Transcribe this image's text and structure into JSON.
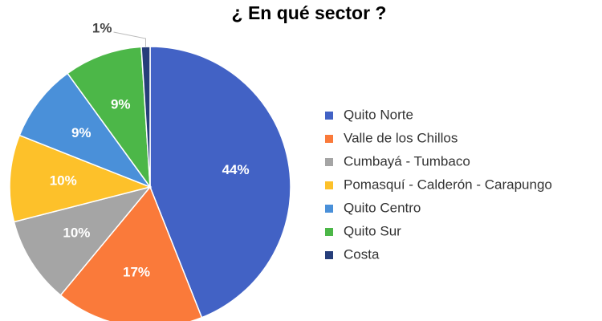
{
  "chart_data": {
    "type": "pie",
    "title": "¿ En qué sector ?",
    "categories": [
      "Quito Norte",
      "Valle de los Chillos",
      "Cumbayá - Tumbaco",
      "Pomasquí - Calderón - Carapungo",
      "Quito Centro",
      "Quito Sur",
      "Costa"
    ],
    "values": [
      44,
      17,
      10,
      10,
      9,
      9,
      1
    ],
    "value_labels": [
      "44%",
      "17%",
      "10%",
      "10%",
      "9%",
      "9%",
      "1%"
    ],
    "colors": [
      "#4262c5",
      "#fa7a3a",
      "#a5a5a5",
      "#fdc12a",
      "#4a90d9",
      "#4cb748",
      "#263e7a"
    ],
    "legend": "right"
  }
}
